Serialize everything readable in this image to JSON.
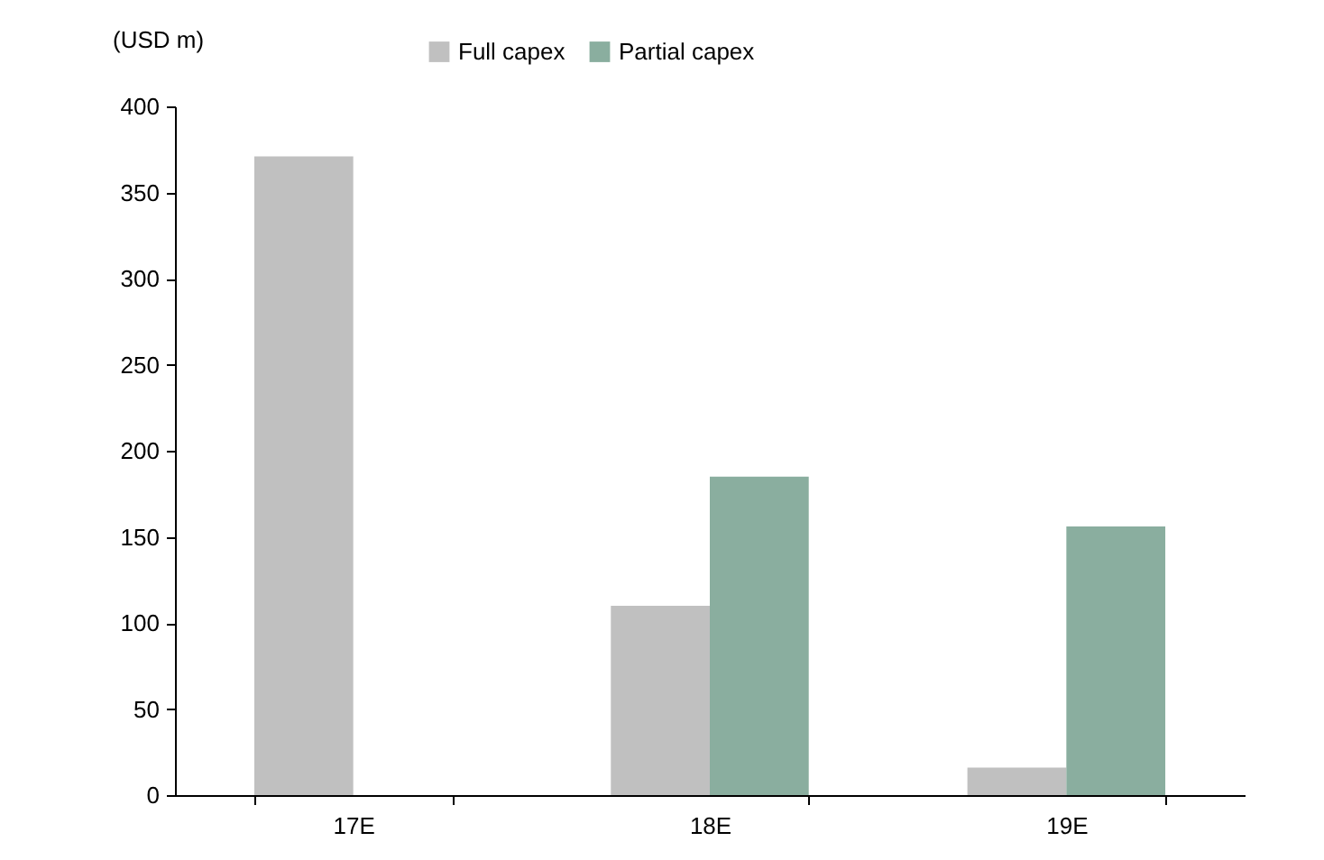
{
  "chart_data": {
    "type": "bar",
    "ylabel": "(USD m)",
    "categories": [
      "17E",
      "18E",
      "19E"
    ],
    "series": [
      {
        "name": "Full capex",
        "color": "#c0c0c0",
        "values": [
          371,
          110,
          16
        ]
      },
      {
        "name": "Partial capex",
        "color": "#8aae9f",
        "values": [
          null,
          185,
          156
        ]
      }
    ],
    "ylim": [
      0,
      400
    ],
    "yticks": [
      0,
      50,
      100,
      150,
      200,
      250,
      300,
      350,
      400
    ],
    "legend": "top"
  }
}
